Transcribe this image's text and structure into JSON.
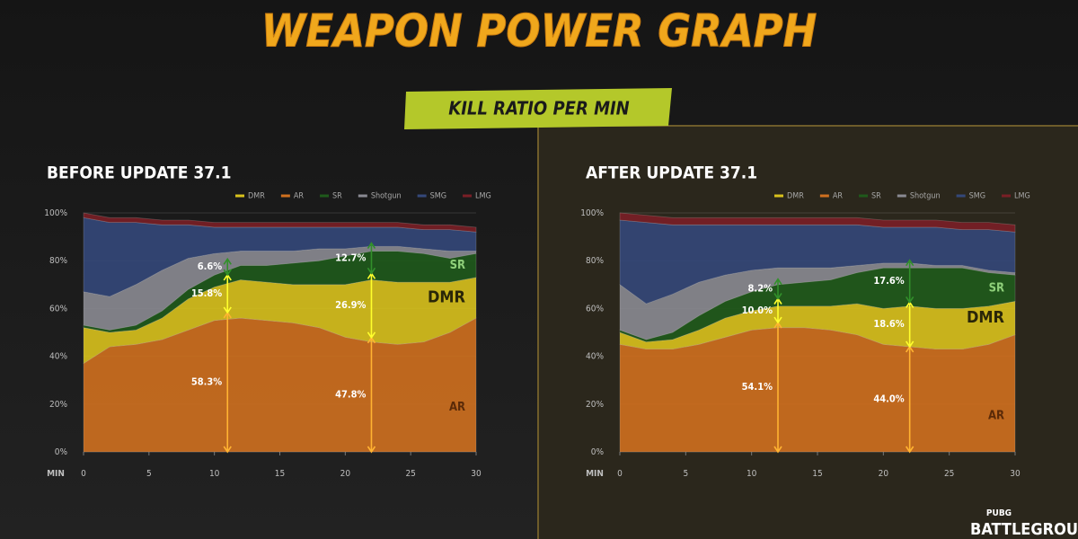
{
  "header": {
    "title": "WEAPON POWER GRAPH",
    "subtitle": "KILL RATIO PER MIN"
  },
  "logo": {
    "top": "PUBG",
    "bottom": "BATTLEGROUNDS"
  },
  "chart_data": [
    {
      "type": "area",
      "stacked": true,
      "title": "BEFORE UPDATE 37.1",
      "xlabel": "MIN",
      "x": [
        0,
        2,
        4,
        6,
        8,
        10,
        12,
        14,
        16,
        18,
        20,
        22,
        24,
        26,
        28,
        30
      ],
      "xlim": [
        0,
        30
      ],
      "xticks": [
        0,
        5,
        10,
        15,
        20,
        25,
        30
      ],
      "ylim": [
        0,
        100
      ],
      "yticks": [
        {
          "value": 0,
          "label": "0%"
        },
        {
          "value": 20,
          "label": "20%"
        },
        {
          "value": 40,
          "label": "40%"
        },
        {
          "value": 60,
          "label": "60%"
        },
        {
          "value": 80,
          "label": "80%"
        },
        {
          "value": 100,
          "label": "100%"
        }
      ],
      "grid": true,
      "series": [
        {
          "name": "DMR",
          "color": "#d9c21c",
          "values": [
            15,
            6,
            6,
            9,
            13,
            14,
            16,
            16,
            16,
            18,
            22,
            26,
            26,
            25,
            21,
            17
          ]
        },
        {
          "name": "AR",
          "color": "#d0701f",
          "values": [
            37,
            44,
            45,
            47,
            51,
            55,
            56,
            55,
            54,
            52,
            48,
            46,
            45,
            46,
            50,
            56
          ]
        },
        {
          "name": "SR",
          "color": "#1f5a1b",
          "values": [
            1,
            1,
            2,
            3,
            4,
            5,
            6,
            7,
            9,
            10,
            12,
            12,
            13,
            12,
            10,
            10
          ]
        },
        {
          "name": "Shotgun",
          "color": "#8a8a92",
          "values": [
            14,
            14,
            17,
            17,
            13,
            9,
            6,
            6,
            5,
            5,
            3,
            2,
            2,
            2,
            3,
            1
          ]
        },
        {
          "name": "SMG",
          "color": "#34487a",
          "values": [
            31,
            31,
            26,
            19,
            14,
            11,
            10,
            10,
            10,
            9,
            9,
            8,
            8,
            8,
            9,
            8
          ]
        },
        {
          "name": "LMG",
          "color": "#7a1f26",
          "values": [
            2,
            2,
            2,
            2,
            2,
            2,
            2,
            2,
            2,
            2,
            2,
            2,
            2,
            2,
            2,
            2
          ]
        }
      ],
      "annotations": [
        {
          "x": 11,
          "values": [
            58.3,
            15.8,
            6.6
          ],
          "value_labels": [
            "58.3%",
            "15.8%",
            "6.6%"
          ]
        },
        {
          "x": 22,
          "values": [
            47.8,
            26.9,
            12.7
          ],
          "value_labels": [
            "47.8%",
            "26.9%",
            "12.7%"
          ]
        }
      ]
    },
    {
      "type": "area",
      "stacked": true,
      "title": "AFTER UPDATE 37.1",
      "xlabel": "MIN",
      "x": [
        0,
        2,
        4,
        6,
        8,
        10,
        12,
        14,
        16,
        18,
        20,
        22,
        24,
        26,
        28,
        30
      ],
      "xlim": [
        0,
        30
      ],
      "xticks": [
        0,
        5,
        10,
        15,
        20,
        25,
        30
      ],
      "ylim": [
        0,
        100
      ],
      "yticks": [
        {
          "value": 0,
          "label": "0%"
        },
        {
          "value": 20,
          "label": "20%"
        },
        {
          "value": 40,
          "label": "40%"
        },
        {
          "value": 60,
          "label": "60%"
        },
        {
          "value": 80,
          "label": "80%"
        },
        {
          "value": 100,
          "label": "100%"
        }
      ],
      "grid": true,
      "series": [
        {
          "name": "DMR",
          "color": "#d9c21c",
          "values": [
            5,
            3,
            4,
            6,
            8,
            8,
            9,
            9,
            10,
            13,
            15,
            17,
            17,
            17,
            16,
            14
          ]
        },
        {
          "name": "AR",
          "color": "#d0701f",
          "values": [
            45,
            43,
            43,
            45,
            48,
            51,
            52,
            52,
            51,
            49,
            45,
            44,
            43,
            43,
            45,
            49
          ]
        },
        {
          "name": "SR",
          "color": "#1f5a1b",
          "values": [
            1,
            1,
            3,
            6,
            7,
            8,
            9,
            10,
            11,
            13,
            17,
            16,
            17,
            17,
            14,
            11
          ]
        },
        {
          "name": "Shotgun",
          "color": "#8a8a92",
          "values": [
            19,
            15,
            16,
            14,
            11,
            9,
            7,
            6,
            5,
            3,
            2,
            2,
            1,
            1,
            1,
            1
          ]
        },
        {
          "name": "SMG",
          "color": "#34487a",
          "values": [
            27,
            34,
            29,
            24,
            21,
            19,
            18,
            18,
            18,
            17,
            15,
            15,
            16,
            15,
            17,
            17
          ]
        },
        {
          "name": "LMG",
          "color": "#7a1f26",
          "values": [
            3,
            3,
            3,
            3,
            3,
            3,
            3,
            3,
            3,
            3,
            3,
            3,
            3,
            3,
            3,
            3
          ]
        }
      ],
      "annotations": [
        {
          "x": 12,
          "values": [
            54.1,
            10.0,
            8.2
          ],
          "value_labels": [
            "54.1%",
            "10.0%",
            "8.2%"
          ]
        },
        {
          "x": 22,
          "values": [
            44.0,
            18.6,
            17.6
          ],
          "value_labels": [
            "44.0%",
            "18.6%",
            "17.6%"
          ]
        }
      ]
    }
  ]
}
